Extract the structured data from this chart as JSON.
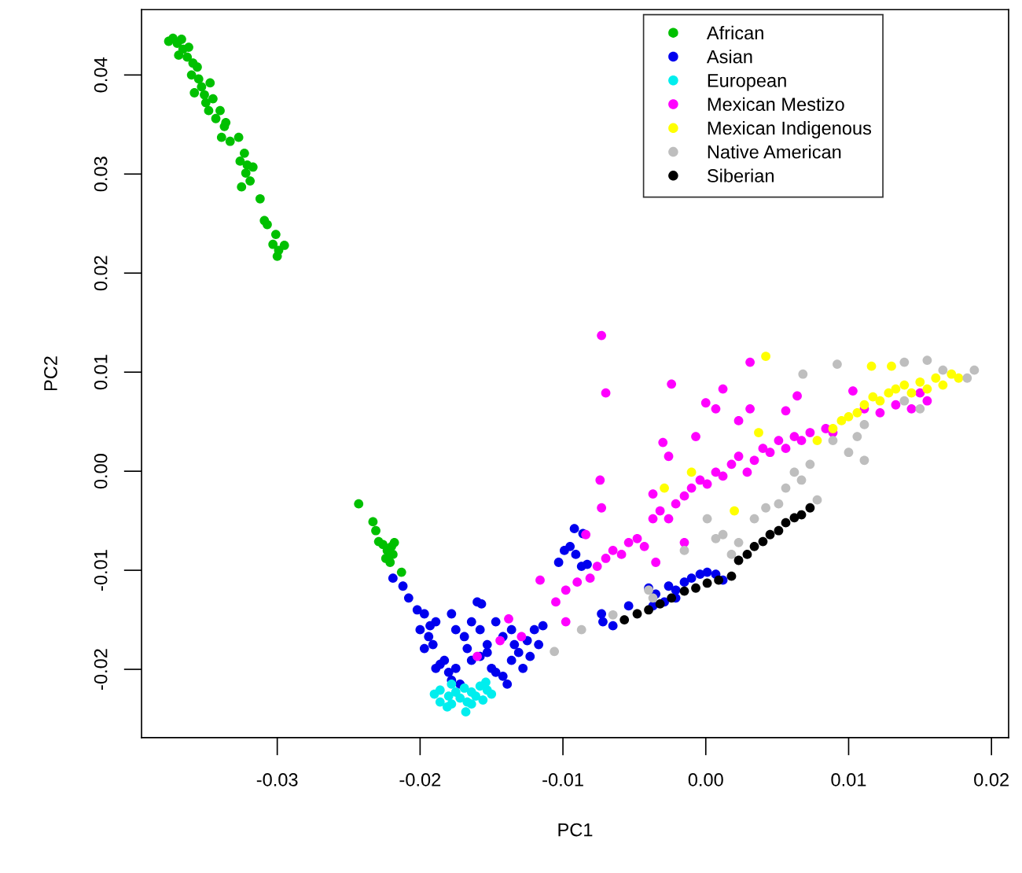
{
  "chart_data": {
    "type": "scatter",
    "xlabel": "PC1",
    "ylabel": "PC2",
    "xlim": [
      -0.0395,
      0.0212
    ],
    "ylim": [
      -0.0269,
      0.0466
    ],
    "xticks": [
      {
        "value": -0.03,
        "label": "-0.03"
      },
      {
        "value": -0.02,
        "label": "-0.02"
      },
      {
        "value": -0.01,
        "label": "-0.01"
      },
      {
        "value": 0.0,
        "label": "0.00"
      },
      {
        "value": 0.01,
        "label": "0.01"
      },
      {
        "value": 0.02,
        "label": "0.02"
      }
    ],
    "yticks": [
      {
        "value": -0.02,
        "label": "-0.02"
      },
      {
        "value": -0.01,
        "label": "-0.01"
      },
      {
        "value": 0.0,
        "label": "0.00"
      },
      {
        "value": 0.01,
        "label": "0.01"
      },
      {
        "value": 0.02,
        "label": "0.02"
      },
      {
        "value": 0.03,
        "label": "0.03"
      },
      {
        "value": 0.04,
        "label": "0.04"
      }
    ],
    "marker": "circle",
    "grid": false,
    "legend": "top right",
    "series": [
      {
        "name": "African",
        "color": "#00c000",
        "x": [
          -0.0376,
          -0.0373,
          -0.037,
          -0.0367,
          -0.0366,
          -0.0369,
          -0.0363,
          -0.0362,
          -0.0359,
          -0.036,
          -0.0356,
          -0.0355,
          -0.0353,
          -0.0358,
          -0.0351,
          -0.035,
          -0.0347,
          -0.0345,
          -0.0348,
          -0.0343,
          -0.034,
          -0.0337,
          -0.0336,
          -0.0339,
          -0.0333,
          -0.0327,
          -0.0326,
          -0.0323,
          -0.0321,
          -0.0317,
          -0.0322,
          -0.0319,
          -0.0325,
          -0.0312,
          -0.0309,
          -0.0307,
          -0.0301,
          -0.0303,
          -0.0299,
          -0.03,
          -0.0295,
          -0.0243,
          -0.0233,
          -0.0231,
          -0.0229,
          -0.0226,
          -0.0223,
          -0.022,
          -0.0219,
          -0.0224,
          -0.0218,
          -0.0221,
          -0.0213
        ],
        "values": [
          0.0434,
          0.0437,
          0.0432,
          0.0436,
          0.0426,
          0.042,
          0.0418,
          0.0428,
          0.0412,
          0.04,
          0.0408,
          0.0396,
          0.0388,
          0.0382,
          0.038,
          0.0372,
          0.0392,
          0.0376,
          0.0364,
          0.0356,
          0.0364,
          0.0348,
          0.0352,
          0.0337,
          0.0333,
          0.0337,
          0.0313,
          0.0321,
          0.0309,
          0.0307,
          0.0301,
          0.0293,
          0.0287,
          0.0275,
          0.0253,
          0.0249,
          0.0239,
          0.0229,
          0.0223,
          0.0217,
          0.0228,
          -0.0033,
          -0.0051,
          -0.006,
          -0.0071,
          -0.0074,
          -0.008,
          -0.0076,
          -0.0084,
          -0.0088,
          -0.0072,
          -0.0092,
          -0.0102
        ]
      },
      {
        "name": "Asian",
        "color": "#0000ee",
        "x": [
          -0.0219,
          -0.0212,
          -0.0208,
          -0.0202,
          -0.0197,
          -0.02,
          -0.0194,
          -0.0191,
          -0.0197,
          -0.0189,
          -0.0193,
          -0.0189,
          -0.0186,
          -0.0183,
          -0.018,
          -0.0178,
          -0.0175,
          -0.0172,
          -0.0164,
          -0.0158,
          -0.0153,
          -0.015,
          -0.0147,
          -0.0142,
          -0.0139,
          -0.0136,
          -0.0134,
          -0.0131,
          -0.0125,
          -0.012,
          -0.0114,
          -0.0117,
          -0.0123,
          -0.0128,
          -0.0164,
          -0.0158,
          -0.0153,
          -0.0147,
          -0.0142,
          -0.0136,
          -0.016,
          -0.0157,
          -0.0178,
          -0.0175,
          -0.0169,
          -0.0167,
          -0.0103,
          -0.0099,
          -0.0095,
          -0.0091,
          -0.0087,
          -0.0083,
          -0.0092,
          -0.0086,
          -0.0073,
          -0.0072,
          -0.0065,
          -0.0054,
          -0.004,
          -0.0035,
          -0.0026,
          -0.0021,
          -0.0015,
          -0.001,
          -0.0004,
          0.0001,
          0.0007,
          0.0012,
          -0.0037,
          -0.0029,
          -0.0021
        ],
        "values": [
          -0.0108,
          -0.0116,
          -0.0128,
          -0.014,
          -0.0144,
          -0.016,
          -0.0167,
          -0.0175,
          -0.0179,
          -0.0152,
          -0.0156,
          -0.0199,
          -0.0195,
          -0.0191,
          -0.0203,
          -0.0211,
          -0.0199,
          -0.0215,
          -0.0191,
          -0.0187,
          -0.0183,
          -0.0199,
          -0.0203,
          -0.0207,
          -0.0215,
          -0.0191,
          -0.0175,
          -0.0183,
          -0.0171,
          -0.016,
          -0.0156,
          -0.0175,
          -0.0187,
          -0.0199,
          -0.0152,
          -0.016,
          -0.0175,
          -0.0152,
          -0.0167,
          -0.016,
          -0.0132,
          -0.0134,
          -0.0144,
          -0.016,
          -0.0167,
          -0.0179,
          -0.0092,
          -0.008,
          -0.0076,
          -0.0084,
          -0.0096,
          -0.0094,
          -0.0058,
          -0.0063,
          -0.0144,
          -0.0152,
          -0.0156,
          -0.0136,
          -0.0118,
          -0.0124,
          -0.0116,
          -0.012,
          -0.0112,
          -0.0108,
          -0.0104,
          -0.0102,
          -0.0104,
          -0.011,
          -0.0136,
          -0.0132,
          -0.0128
        ]
      },
      {
        "name": "European",
        "color": "#00eeee",
        "x": [
          -0.019,
          -0.0186,
          -0.0181,
          -0.018,
          -0.0178,
          -0.0175,
          -0.0172,
          -0.0169,
          -0.0167,
          -0.0164,
          -0.0161,
          -0.0158,
          -0.0156,
          -0.0153,
          -0.015,
          -0.0168,
          -0.0178,
          -0.0186,
          -0.0164,
          -0.0154
        ],
        "values": [
          -0.0225,
          -0.0221,
          -0.0238,
          -0.0227,
          -0.0235,
          -0.0223,
          -0.0229,
          -0.0219,
          -0.0233,
          -0.0223,
          -0.0227,
          -0.0217,
          -0.0231,
          -0.0221,
          -0.0225,
          -0.0243,
          -0.0215,
          -0.0233,
          -0.0235,
          -0.0213
        ]
      },
      {
        "name": "Mexican Mestizo",
        "color": "#ff00ff",
        "x": [
          -0.0105,
          -0.0098,
          -0.009,
          -0.0081,
          -0.0076,
          -0.007,
          -0.0065,
          -0.0059,
          -0.0054,
          -0.0048,
          -0.0043,
          -0.0037,
          -0.0032,
          -0.0026,
          -0.0021,
          -0.0015,
          -0.001,
          -0.0004,
          0.0001,
          0.0007,
          0.0012,
          0.0018,
          0.0023,
          0.0029,
          0.0034,
          0.004,
          0.0045,
          0.0051,
          0.0056,
          0.0062,
          0.0067,
          0.0073,
          0.0084,
          0.0089,
          0.0111,
          0.0122,
          0.0133,
          0.0144,
          0.0155,
          0.015,
          -0.0073,
          -0.007,
          -0.0074,
          -0.0073,
          -0.0116,
          -0.0098,
          -0.0024,
          0.0012,
          0.0007,
          0.0,
          0.0031,
          0.0023,
          -0.0007,
          -0.0026,
          -0.003,
          -0.0037,
          0.0056,
          0.0064,
          0.0103,
          0.0031,
          -0.0138,
          -0.0129,
          -0.0144,
          -0.016,
          -0.0084,
          -0.0015,
          -0.0035
        ],
        "values": [
          -0.0132,
          -0.012,
          -0.0112,
          -0.0108,
          -0.0096,
          -0.0088,
          -0.008,
          -0.0084,
          -0.0072,
          -0.0068,
          -0.0076,
          -0.0048,
          -0.004,
          -0.0048,
          -0.0033,
          -0.0025,
          -0.0017,
          -0.0009,
          -0.0013,
          -0.0001,
          -0.0005,
          0.0007,
          0.0015,
          -0.0001,
          0.0011,
          0.0023,
          0.0019,
          0.0031,
          0.0023,
          0.0035,
          0.0031,
          0.0039,
          0.0043,
          0.0039,
          0.0063,
          0.0059,
          0.0067,
          0.0063,
          0.0071,
          0.0079,
          0.0137,
          0.0079,
          -0.0009,
          -0.0037,
          -0.011,
          -0.0152,
          0.0088,
          0.0083,
          0.0063,
          0.0069,
          0.0063,
          0.0051,
          0.0035,
          0.0015,
          0.0029,
          -0.0023,
          0.0061,
          0.0076,
          0.0081,
          0.011,
          -0.0149,
          -0.0167,
          -0.0171,
          -0.0187,
          -0.0064,
          -0.0072,
          -0.0092
        ]
      },
      {
        "name": "Mexican Indigenous",
        "color": "#ffff00",
        "x": [
          0.0089,
          0.0095,
          0.01,
          0.0106,
          0.0111,
          0.0117,
          0.0122,
          0.0128,
          0.0133,
          0.0139,
          0.0144,
          0.015,
          0.0155,
          0.0161,
          0.0166,
          0.0172,
          0.0177,
          0.0116,
          0.013,
          0.0042,
          0.0037,
          -0.0029,
          -0.001,
          0.002,
          0.0078
        ],
        "values": [
          0.0043,
          0.0051,
          0.0055,
          0.0059,
          0.0067,
          0.0075,
          0.0071,
          0.0079,
          0.0083,
          0.0087,
          0.0079,
          0.009,
          0.0083,
          0.0094,
          0.0087,
          0.0098,
          0.0094,
          0.0106,
          0.0106,
          0.0116,
          0.0039,
          -0.0017,
          -0.0001,
          -0.004,
          0.0031
        ]
      },
      {
        "name": "Native American",
        "color": "#bebebe",
        "x": [
          0.0188,
          0.0183,
          0.0155,
          0.0139,
          0.0092,
          0.0068,
          0.0166,
          0.0111,
          0.01,
          0.0089,
          0.0073,
          0.0067,
          0.0078,
          0.0056,
          0.0051,
          0.0034,
          0.0023,
          0.0012,
          0.0007,
          0.0018,
          0.0001,
          -0.0015,
          -0.0037,
          -0.004,
          -0.0065,
          -0.0087,
          -0.0106,
          0.0139,
          0.015,
          0.0111,
          0.0106,
          0.0042,
          0.0062
        ],
        "values": [
          0.0102,
          0.0094,
          0.0112,
          0.011,
          0.0108,
          0.0098,
          0.0102,
          0.0011,
          0.0019,
          0.0031,
          0.0007,
          -0.0009,
          -0.0029,
          -0.0017,
          -0.0033,
          -0.0048,
          -0.0072,
          -0.0064,
          -0.0068,
          -0.0084,
          -0.0048,
          -0.008,
          -0.0128,
          -0.012,
          -0.0145,
          -0.016,
          -0.0182,
          0.0071,
          0.0063,
          0.0047,
          0.0035,
          -0.0037,
          -0.0001
        ]
      },
      {
        "name": "Siberian",
        "color": "#000000",
        "x": [
          -0.0057,
          -0.0048,
          -0.004,
          -0.0032,
          -0.0024,
          -0.0015,
          -0.0007,
          0.0001,
          0.0009,
          0.0018,
          0.0023,
          0.0029,
          0.0034,
          0.004,
          0.0045,
          0.0051,
          0.0056,
          0.0062,
          0.0067,
          0.0073
        ],
        "values": [
          -0.015,
          -0.0144,
          -0.014,
          -0.0134,
          -0.0128,
          -0.0121,
          -0.0118,
          -0.0113,
          -0.011,
          -0.0106,
          -0.009,
          -0.0084,
          -0.0076,
          -0.0071,
          -0.0064,
          -0.006,
          -0.0052,
          -0.0047,
          -0.0044,
          -0.0037
        ]
      }
    ]
  }
}
